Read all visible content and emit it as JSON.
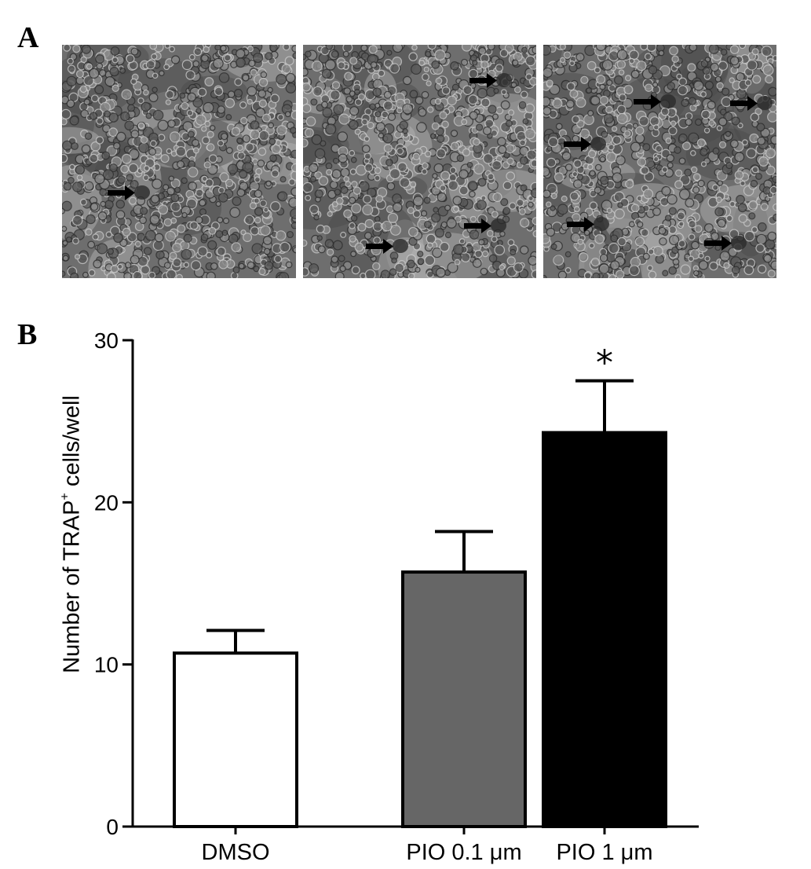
{
  "panels": {
    "a_label": "A",
    "b_label": "B"
  },
  "micrographs": [
    {
      "arrows": 1
    },
    {
      "arrows": 3
    },
    {
      "arrows": 5
    }
  ],
  "chart_data": {
    "type": "bar",
    "categories": [
      "DMSO",
      "PIO 0.1 μm",
      "PIO 1 μm"
    ],
    "values": [
      10.7,
      15.7,
      24.3
    ],
    "errors": [
      1.4,
      2.5,
      3.2
    ],
    "bar_colors": [
      "#ffffff",
      "#666666",
      "#000000"
    ],
    "ylabel_main": "Number of TRAP",
    "ylabel_sup": "+",
    "ylabel_tail": " cells/well",
    "ylim": [
      0,
      30
    ],
    "yticks": [
      0,
      10,
      20,
      30
    ],
    "significance": [
      {
        "category": "PIO 1 μm",
        "mark": "*"
      }
    ]
  }
}
